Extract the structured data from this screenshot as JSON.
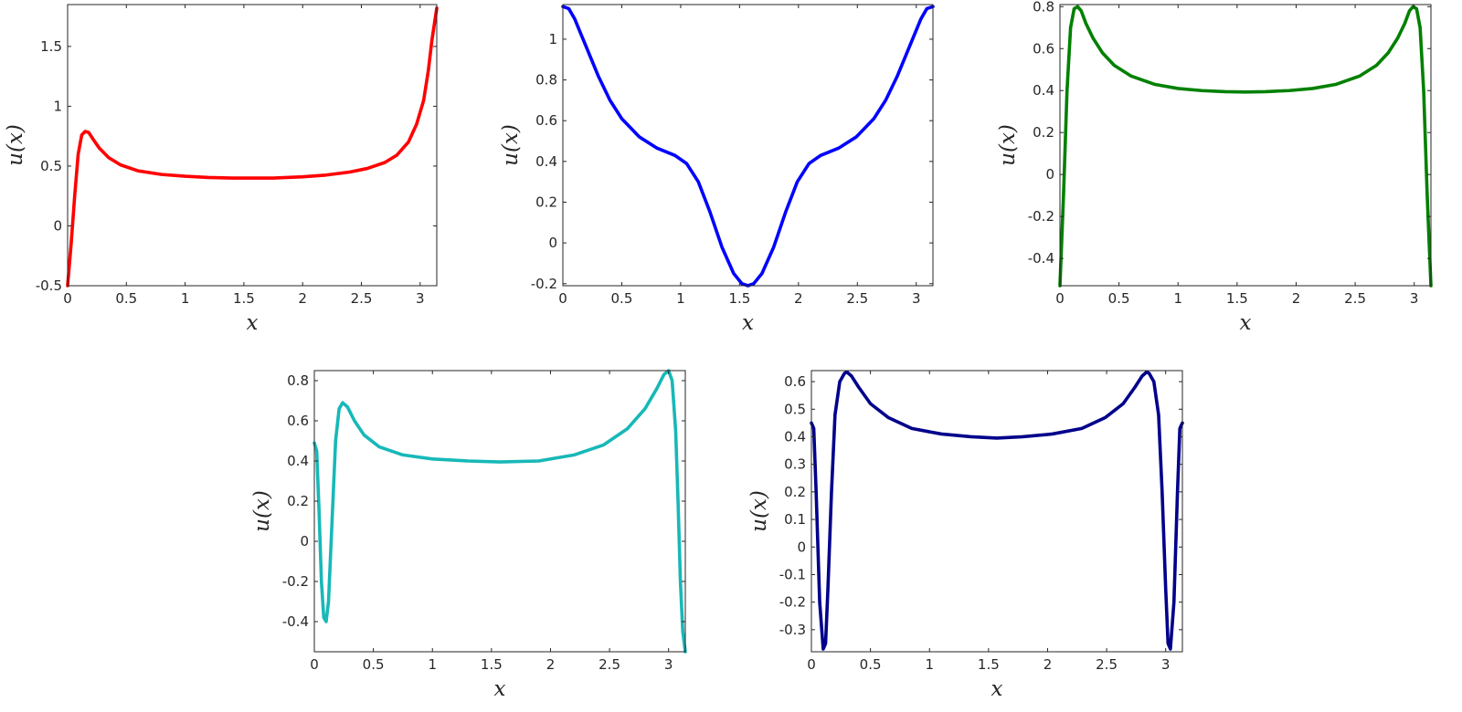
{
  "chart_data": [
    {
      "type": "line",
      "xlabel": "x",
      "ylabel": "u(x)",
      "xlim": [
        0,
        3.1416
      ],
      "ylim": [
        -0.5,
        1.85
      ],
      "xticks": [
        "0",
        "0.5",
        "1",
        "1.5",
        "2",
        "2.5",
        "3"
      ],
      "yticks": [
        "-0.5",
        "0",
        "0.5",
        "1",
        "1.5"
      ],
      "grid": false,
      "series": [
        {
          "color": "#ff0000",
          "x": [
            0,
            0.03,
            0.06,
            0.09,
            0.12,
            0.15,
            0.18,
            0.22,
            0.27,
            0.35,
            0.45,
            0.6,
            0.8,
            1.0,
            1.2,
            1.4,
            1.57,
            1.75,
            2.0,
            2.2,
            2.4,
            2.55,
            2.7,
            2.8,
            2.9,
            2.97,
            3.03,
            3.07,
            3.1,
            3.1416
          ],
          "y": [
            -0.5,
            -0.15,
            0.25,
            0.6,
            0.76,
            0.79,
            0.78,
            0.72,
            0.65,
            0.57,
            0.51,
            0.46,
            0.43,
            0.415,
            0.405,
            0.4,
            0.4,
            0.4,
            0.41,
            0.425,
            0.45,
            0.48,
            0.53,
            0.59,
            0.7,
            0.85,
            1.05,
            1.3,
            1.55,
            1.82
          ]
        }
      ]
    },
    {
      "type": "line",
      "xlabel": "x",
      "ylabel": "u(x)",
      "xlim": [
        0,
        3.1416
      ],
      "ylim": [
        -0.21,
        1.17
      ],
      "xticks": [
        "0",
        "0.5",
        "1",
        "1.5",
        "2",
        "2.5",
        "3"
      ],
      "yticks": [
        "-0.2",
        "0",
        "0.2",
        "0.4",
        "0.6",
        "0.8",
        "1"
      ],
      "grid": false,
      "series": [
        {
          "color": "#0000ff",
          "x": [
            0,
            0.05,
            0.1,
            0.2,
            0.3,
            0.4,
            0.5,
            0.65,
            0.8,
            0.95,
            1.05,
            1.15,
            1.25,
            1.35,
            1.45,
            1.52,
            1.5708,
            1.62,
            1.69,
            1.79,
            1.89,
            1.99,
            2.09,
            2.19,
            2.34,
            2.49,
            2.64,
            2.74,
            2.84,
            2.94,
            3.04,
            3.09,
            3.1416
          ],
          "y": [
            1.16,
            1.15,
            1.1,
            0.96,
            0.82,
            0.7,
            0.61,
            0.52,
            0.465,
            0.43,
            0.39,
            0.3,
            0.15,
            -0.02,
            -0.15,
            -0.2,
            -0.21,
            -0.2,
            -0.15,
            -0.02,
            0.15,
            0.3,
            0.39,
            0.43,
            0.465,
            0.52,
            0.61,
            0.7,
            0.82,
            0.96,
            1.1,
            1.15,
            1.16
          ]
        }
      ]
    },
    {
      "type": "line",
      "xlabel": "x",
      "ylabel": "u(x)",
      "xlim": [
        0,
        3.1416
      ],
      "ylim": [
        -0.53,
        0.81
      ],
      "xticks": [
        "0",
        "0.5",
        "1",
        "1.5",
        "2",
        "2.5",
        "3"
      ],
      "yticks": [
        "-0.4",
        "-0.2",
        "0",
        "0.2",
        "0.4",
        "0.6",
        "0.8"
      ],
      "grid": false,
      "series": [
        {
          "color": "#008000",
          "x": [
            0,
            0.03,
            0.06,
            0.09,
            0.12,
            0.15,
            0.18,
            0.22,
            0.28,
            0.36,
            0.46,
            0.6,
            0.8,
            1.0,
            1.2,
            1.4,
            1.5708,
            1.74,
            1.94,
            2.14,
            2.34,
            2.54,
            2.68,
            2.78,
            2.86,
            2.92,
            2.96,
            2.99,
            3.02,
            3.05,
            3.08,
            3.11,
            3.1416
          ],
          "y": [
            -0.53,
            -0.1,
            0.4,
            0.7,
            0.79,
            0.8,
            0.78,
            0.72,
            0.65,
            0.58,
            0.52,
            0.47,
            0.43,
            0.41,
            0.4,
            0.395,
            0.393,
            0.395,
            0.4,
            0.41,
            0.43,
            0.47,
            0.52,
            0.58,
            0.65,
            0.72,
            0.78,
            0.8,
            0.79,
            0.7,
            0.4,
            -0.1,
            -0.53
          ]
        }
      ]
    },
    {
      "type": "line",
      "xlabel": "x",
      "ylabel": "u(x)",
      "xlim": [
        0,
        3.1416
      ],
      "ylim": [
        -0.55,
        0.85
      ],
      "xticks": [
        "0",
        "0.5",
        "1",
        "1.5",
        "2",
        "2.5",
        "3"
      ],
      "yticks": [
        "-0.4",
        "-0.2",
        "0",
        "0.2",
        "0.4",
        "0.6",
        "0.8"
      ],
      "grid": false,
      "series": [
        {
          "color": "#17b8b8",
          "x": [
            0,
            0.02,
            0.04,
            0.06,
            0.08,
            0.1,
            0.12,
            0.15,
            0.18,
            0.21,
            0.24,
            0.28,
            0.34,
            0.42,
            0.55,
            0.75,
            1.0,
            1.3,
            1.5708,
            1.9,
            2.2,
            2.45,
            2.65,
            2.8,
            2.9,
            2.96,
            3.0,
            3.03,
            3.06,
            3.08,
            3.1,
            3.12,
            3.1416
          ],
          "y": [
            0.49,
            0.45,
            0.15,
            -0.2,
            -0.38,
            -0.4,
            -0.3,
            0.1,
            0.5,
            0.66,
            0.69,
            0.67,
            0.6,
            0.53,
            0.47,
            0.43,
            0.41,
            0.4,
            0.395,
            0.4,
            0.43,
            0.48,
            0.56,
            0.66,
            0.76,
            0.83,
            0.85,
            0.8,
            0.55,
            0.2,
            -0.2,
            -0.45,
            -0.55
          ]
        }
      ]
    },
    {
      "type": "line",
      "xlabel": "x",
      "ylabel": "u(x)",
      "xlim": [
        0,
        3.1416
      ],
      "ylim": [
        -0.38,
        0.64
      ],
      "xticks": [
        "0",
        "0.5",
        "1",
        "1.5",
        "2",
        "2.5",
        "3"
      ],
      "yticks": [
        "-0.3",
        "-0.2",
        "-0.1",
        "0",
        "0.1",
        "0.2",
        "0.3",
        "0.4",
        "0.5",
        "0.6"
      ],
      "grid": false,
      "series": [
        {
          "color": "#00008b",
          "x": [
            0,
            0.02,
            0.04,
            0.07,
            0.1,
            0.12,
            0.14,
            0.17,
            0.2,
            0.24,
            0.28,
            0.3,
            0.34,
            0.4,
            0.5,
            0.65,
            0.85,
            1.1,
            1.35,
            1.5708,
            1.79,
            2.04,
            2.29,
            2.49,
            2.64,
            2.74,
            2.8,
            2.84,
            2.86,
            2.9,
            2.94,
            2.97,
            3.0,
            3.02,
            3.04,
            3.07,
            3.1,
            3.12,
            3.1416
          ],
          "y": [
            0.45,
            0.43,
            0.2,
            -0.2,
            -0.37,
            -0.35,
            -0.15,
            0.2,
            0.48,
            0.6,
            0.63,
            0.635,
            0.62,
            0.58,
            0.52,
            0.47,
            0.43,
            0.41,
            0.4,
            0.395,
            0.4,
            0.41,
            0.43,
            0.47,
            0.52,
            0.58,
            0.62,
            0.635,
            0.63,
            0.6,
            0.48,
            0.2,
            -0.15,
            -0.35,
            -0.37,
            -0.2,
            0.2,
            0.43,
            0.45
          ]
        }
      ]
    }
  ]
}
